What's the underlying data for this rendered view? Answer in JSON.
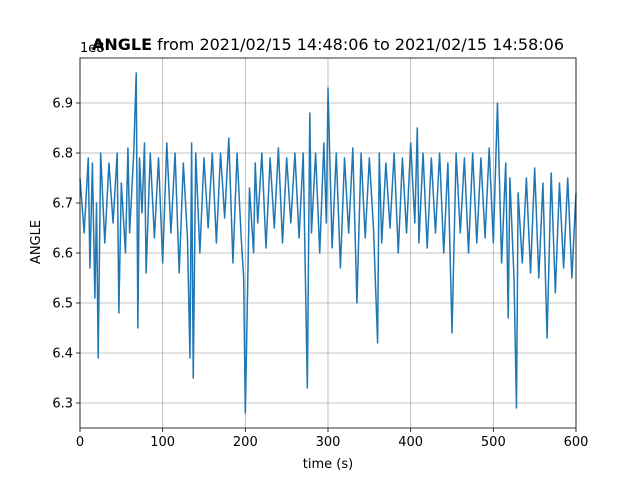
{
  "chart_data": {
    "type": "line",
    "title_bold": "ANGLE",
    "title_rest": " from 2021/02/15 14:48:06 to 2021/02/15 14:58:06",
    "xlabel": "time (s)",
    "ylabel": "ANGLE",
    "offset_label": "1e8",
    "xlim": [
      0,
      600
    ],
    "ylim": [
      6.25,
      6.99
    ],
    "xticks": [
      0,
      100,
      200,
      300,
      400,
      500,
      600
    ],
    "xtick_labels": [
      "0",
      "100",
      "200",
      "300",
      "400",
      "500",
      "600"
    ],
    "yticks": [
      6.3,
      6.4,
      6.5,
      6.6,
      6.7,
      6.8,
      6.9
    ],
    "ytick_labels": [
      "6.3",
      "6.4",
      "6.5",
      "6.6",
      "6.7",
      "6.8",
      "6.9"
    ],
    "grid": true,
    "series": [
      {
        "color": "#1f77b4",
        "x": [
          0,
          5,
          10,
          12,
          15,
          18,
          20,
          22,
          25,
          30,
          35,
          40,
          45,
          47,
          50,
          55,
          58,
          60,
          65,
          68,
          70,
          72,
          75,
          78,
          80,
          85,
          90,
          95,
          100,
          105,
          110,
          115,
          120,
          125,
          130,
          133,
          135,
          137,
          140,
          145,
          150,
          155,
          160,
          165,
          170,
          175,
          180,
          185,
          190,
          195,
          198,
          200,
          205,
          210,
          212,
          215,
          220,
          225,
          230,
          235,
          240,
          245,
          250,
          255,
          260,
          265,
          270,
          275,
          278,
          280,
          285,
          290,
          295,
          298,
          300,
          305,
          310,
          315,
          320,
          325,
          330,
          335,
          340,
          345,
          350,
          355,
          360,
          362,
          365,
          370,
          375,
          380,
          385,
          390,
          395,
          400,
          405,
          408,
          410,
          415,
          420,
          425,
          430,
          435,
          440,
          445,
          450,
          455,
          460,
          465,
          470,
          475,
          480,
          485,
          490,
          495,
          500,
          505,
          510,
          515,
          518,
          520,
          525,
          528,
          530,
          535,
          540,
          545,
          550,
          555,
          560,
          565,
          570,
          575,
          580,
          585,
          590,
          595,
          600
        ],
        "values": [
          6.75,
          6.64,
          6.79,
          6.57,
          6.78,
          6.51,
          6.7,
          6.39,
          6.8,
          6.62,
          6.78,
          6.66,
          6.8,
          6.48,
          6.74,
          6.6,
          6.81,
          6.64,
          6.8,
          6.96,
          6.45,
          6.79,
          6.68,
          6.82,
          6.56,
          6.8,
          6.63,
          6.79,
          6.58,
          6.82,
          6.64,
          6.8,
          6.56,
          6.78,
          6.63,
          6.39,
          6.82,
          6.35,
          6.8,
          6.6,
          6.79,
          6.65,
          6.8,
          6.62,
          6.8,
          6.67,
          6.83,
          6.58,
          6.8,
          6.63,
          6.55,
          6.28,
          6.73,
          6.6,
          6.78,
          6.66,
          6.8,
          6.61,
          6.79,
          6.65,
          6.81,
          6.62,
          6.79,
          6.66,
          6.8,
          6.63,
          6.8,
          6.33,
          6.88,
          6.64,
          6.8,
          6.6,
          6.82,
          6.66,
          6.93,
          6.61,
          6.8,
          6.57,
          6.79,
          6.64,
          6.81,
          6.5,
          6.8,
          6.63,
          6.79,
          6.65,
          6.42,
          6.8,
          6.62,
          6.78,
          6.65,
          6.8,
          6.6,
          6.79,
          6.64,
          6.82,
          6.66,
          6.85,
          6.62,
          6.8,
          6.61,
          6.79,
          6.64,
          6.8,
          6.6,
          6.78,
          6.44,
          6.8,
          6.64,
          6.79,
          6.6,
          6.8,
          6.62,
          6.79,
          6.63,
          6.81,
          6.62,
          6.9,
          6.58,
          6.78,
          6.47,
          6.75,
          6.55,
          6.29,
          6.72,
          6.58,
          6.75,
          6.56,
          6.77,
          6.55,
          6.74,
          6.43,
          6.76,
          6.52,
          6.74,
          6.57,
          6.75,
          6.55,
          6.72
        ]
      }
    ]
  }
}
